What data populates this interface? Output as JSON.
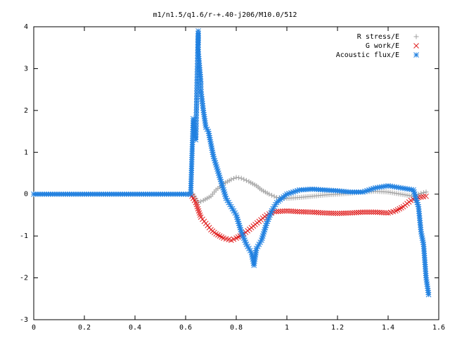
{
  "chart_data": {
    "type": "scatter",
    "title": "m1/n1.5/q1.6/r-+.40-j206/M10.0/512",
    "xlabel": "",
    "ylabel": "",
    "xlim": [
      0,
      1.6
    ],
    "ylim": [
      -3,
      4
    ],
    "xticks": [
      "0",
      "0.2",
      "0.4",
      "0.6",
      "0.8",
      "1",
      "1.2",
      "1.4",
      "1.6"
    ],
    "yticks": [
      "4",
      "3",
      "2",
      "1",
      "0",
      "-1",
      "-2",
      "-3"
    ],
    "grid": false,
    "legend_position": "top-right",
    "series": [
      {
        "name": "R stress/E",
        "marker": "+",
        "color": "#a0a0a0",
        "points": [
          [
            0.0,
            0
          ],
          [
            0.1,
            0
          ],
          [
            0.2,
            0
          ],
          [
            0.3,
            0
          ],
          [
            0.4,
            0
          ],
          [
            0.5,
            0
          ],
          [
            0.6,
            0
          ],
          [
            0.63,
            0
          ],
          [
            0.65,
            -0.2
          ],
          [
            0.67,
            -0.15
          ],
          [
            0.7,
            -0.05
          ],
          [
            0.72,
            0.1
          ],
          [
            0.75,
            0.25
          ],
          [
            0.78,
            0.35
          ],
          [
            0.8,
            0.4
          ],
          [
            0.82,
            0.38
          ],
          [
            0.85,
            0.3
          ],
          [
            0.88,
            0.2
          ],
          [
            0.9,
            0.1
          ],
          [
            0.93,
            0
          ],
          [
            0.96,
            -0.08
          ],
          [
            1.0,
            -0.1
          ],
          [
            1.05,
            -0.08
          ],
          [
            1.1,
            -0.05
          ],
          [
            1.15,
            -0.02
          ],
          [
            1.2,
            0
          ],
          [
            1.25,
            0.02
          ],
          [
            1.3,
            0.05
          ],
          [
            1.35,
            0.07
          ],
          [
            1.4,
            0.05
          ],
          [
            1.45,
            0
          ],
          [
            1.5,
            -0.05
          ],
          [
            1.53,
            0.02
          ],
          [
            1.55,
            0.05
          ]
        ]
      },
      {
        "name": "G work/E",
        "marker": "x",
        "color": "#e02020",
        "points": [
          [
            0.62,
            0
          ],
          [
            0.64,
            -0.2
          ],
          [
            0.66,
            -0.55
          ],
          [
            0.68,
            -0.7
          ],
          [
            0.7,
            -0.85
          ],
          [
            0.72,
            -0.95
          ],
          [
            0.75,
            -1.05
          ],
          [
            0.78,
            -1.1
          ],
          [
            0.8,
            -1.05
          ],
          [
            0.83,
            -0.95
          ],
          [
            0.86,
            -0.8
          ],
          [
            0.89,
            -0.65
          ],
          [
            0.92,
            -0.5
          ],
          [
            0.95,
            -0.42
          ],
          [
            1.0,
            -0.4
          ],
          [
            1.05,
            -0.42
          ],
          [
            1.1,
            -0.43
          ],
          [
            1.15,
            -0.45
          ],
          [
            1.2,
            -0.46
          ],
          [
            1.25,
            -0.45
          ],
          [
            1.3,
            -0.43
          ],
          [
            1.35,
            -0.43
          ],
          [
            1.4,
            -0.45
          ],
          [
            1.43,
            -0.4
          ],
          [
            1.46,
            -0.3
          ],
          [
            1.49,
            -0.15
          ],
          [
            1.52,
            -0.08
          ],
          [
            1.55,
            -0.05
          ]
        ]
      },
      {
        "name": "Acoustic flux/E",
        "marker": "*",
        "color": "#2080e0",
        "points": [
          [
            0.0,
            0
          ],
          [
            0.1,
            0
          ],
          [
            0.2,
            0
          ],
          [
            0.3,
            0
          ],
          [
            0.4,
            0
          ],
          [
            0.5,
            0
          ],
          [
            0.6,
            0
          ],
          [
            0.62,
            0
          ],
          [
            0.63,
            1.8
          ],
          [
            0.64,
            1.3
          ],
          [
            0.65,
            3.9
          ],
          [
            0.65,
            3.4
          ],
          [
            0.66,
            2.7
          ],
          [
            0.66,
            2.5
          ],
          [
            0.67,
            2.0
          ],
          [
            0.68,
            1.6
          ],
          [
            0.69,
            1.5
          ],
          [
            0.7,
            1.2
          ],
          [
            0.71,
            0.9
          ],
          [
            0.72,
            0.7
          ],
          [
            0.73,
            0.5
          ],
          [
            0.74,
            0.3
          ],
          [
            0.75,
            0.1
          ],
          [
            0.76,
            -0.1
          ],
          [
            0.78,
            -0.3
          ],
          [
            0.8,
            -0.5
          ],
          [
            0.82,
            -0.9
          ],
          [
            0.84,
            -1.2
          ],
          [
            0.86,
            -1.4
          ],
          [
            0.87,
            -1.7
          ],
          [
            0.88,
            -1.3
          ],
          [
            0.9,
            -1.1
          ],
          [
            0.92,
            -0.7
          ],
          [
            0.94,
            -0.4
          ],
          [
            0.96,
            -0.2
          ],
          [
            1.0,
            0
          ],
          [
            1.05,
            0.1
          ],
          [
            1.1,
            0.12
          ],
          [
            1.15,
            0.1
          ],
          [
            1.2,
            0.08
          ],
          [
            1.25,
            0.05
          ],
          [
            1.3,
            0.05
          ],
          [
            1.35,
            0.15
          ],
          [
            1.4,
            0.2
          ],
          [
            1.45,
            0.15
          ],
          [
            1.5,
            0.1
          ],
          [
            1.52,
            -0.3
          ],
          [
            1.53,
            -0.9
          ],
          [
            1.54,
            -1.2
          ],
          [
            1.55,
            -2.0
          ],
          [
            1.56,
            -2.4
          ]
        ]
      }
    ]
  }
}
